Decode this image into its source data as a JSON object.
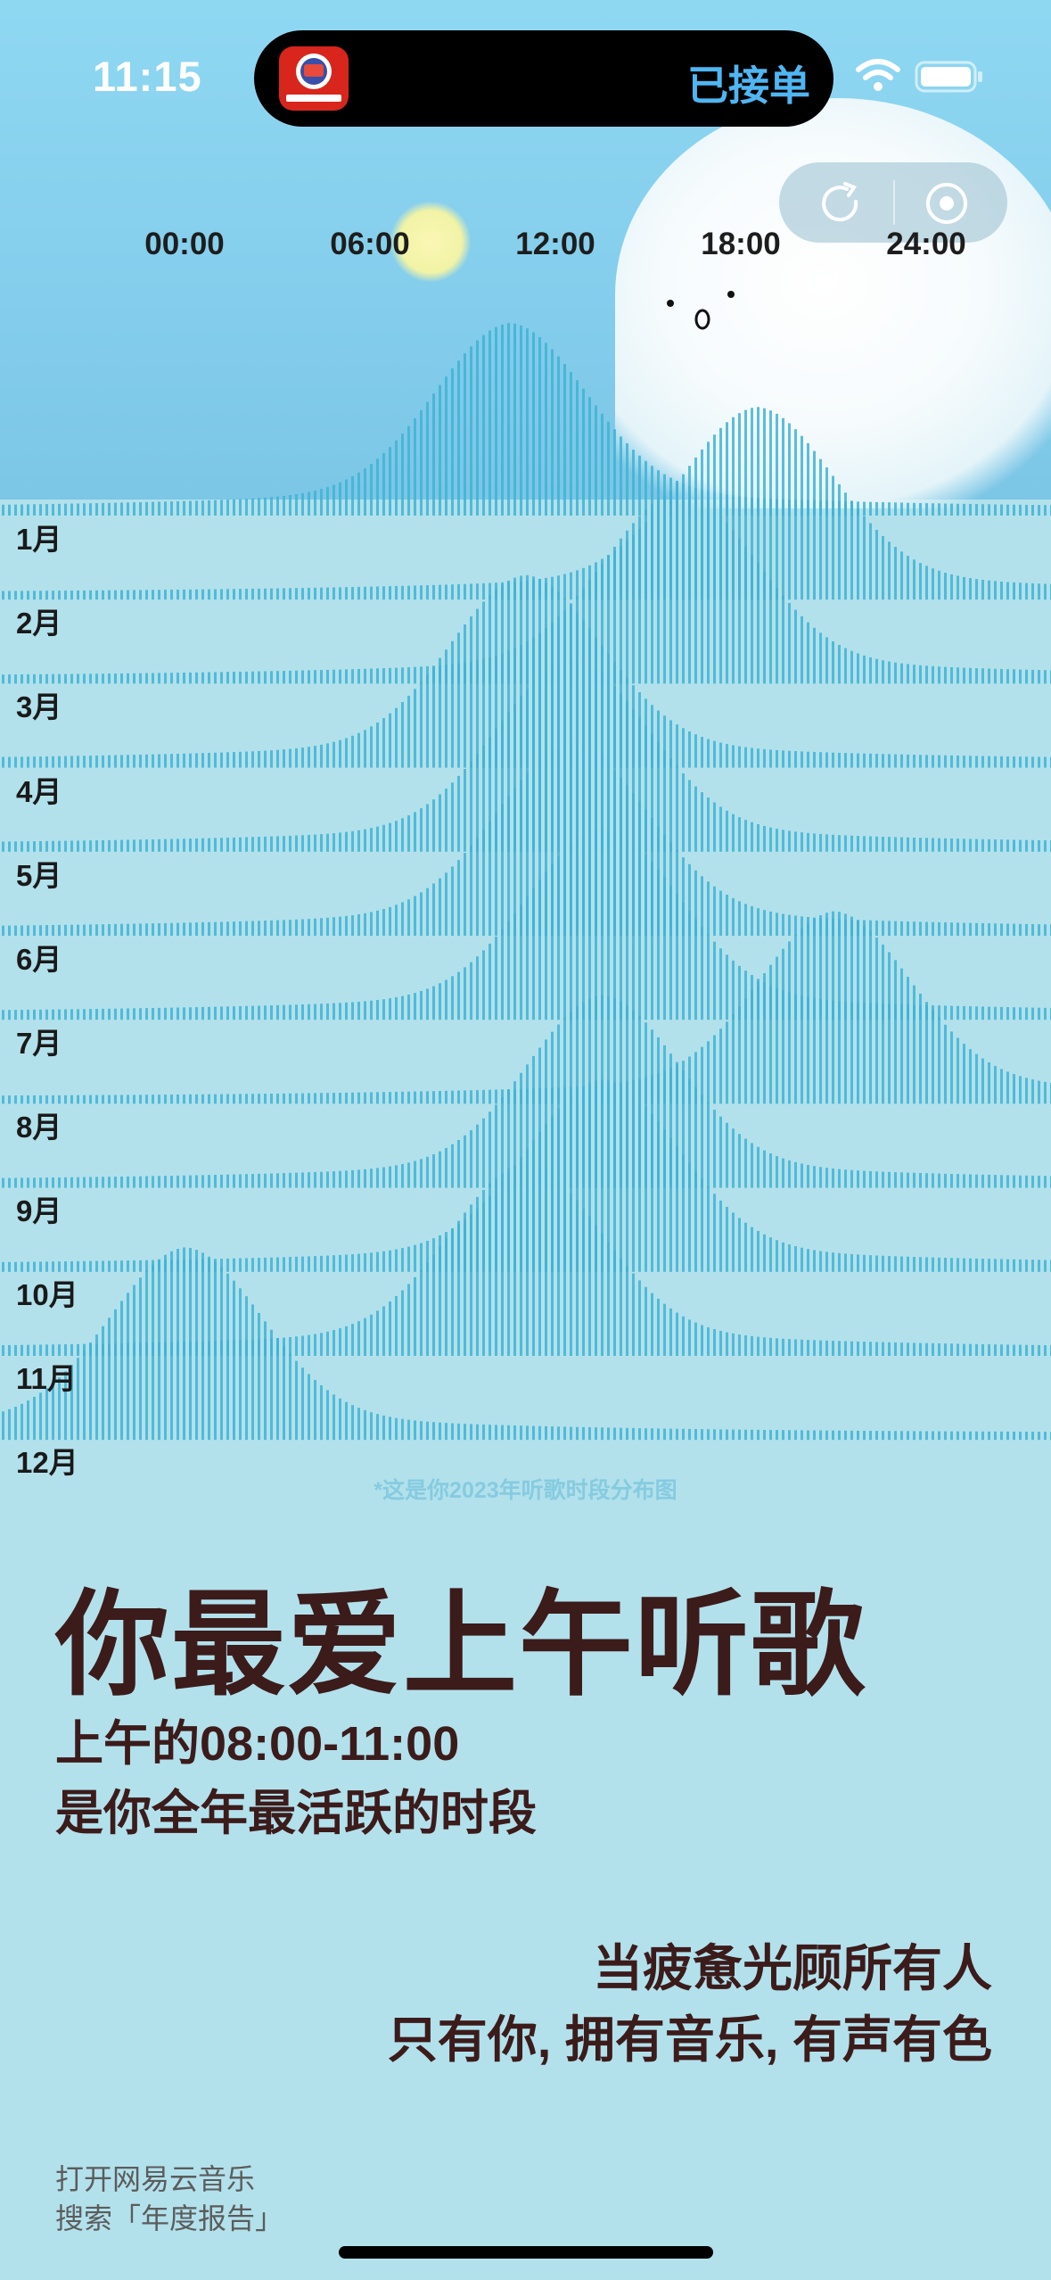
{
  "status_bar": {
    "time": "11:15",
    "island_text": "已接单"
  },
  "app_icon": {
    "name": "app-icon"
  },
  "colors": {
    "accent": "#4fb6f2",
    "wave": "#3fb3d4",
    "text_dark": "#3c1b1b",
    "background": "#b2e1ec"
  },
  "chart_data": {
    "type": "area",
    "title": "",
    "x_ticks": [
      "00:00",
      "06:00",
      "12:00",
      "18:00",
      "24:00"
    ],
    "series": [
      {
        "name": "1月",
        "peak_hour": 10.5
      },
      {
        "name": "2月",
        "peak_hour": 18.5
      },
      {
        "name": "3月",
        "peak_hour": 16.0
      },
      {
        "name": "4月",
        "peak_hour": 11.0
      },
      {
        "name": "5月",
        "peak_hour": 12.5
      },
      {
        "name": "6月",
        "peak_hour": 12.5
      },
      {
        "name": "7月",
        "peak_hour": 13.5
      },
      {
        "name": "8月",
        "peak_hour": 21.0
      },
      {
        "name": "9月",
        "peak_hour": 13.5
      },
      {
        "name": "10月",
        "peak_hour": 13.5
      },
      {
        "name": "11月",
        "peak_hour": 11.0
      },
      {
        "name": "12月",
        "peak_hour": 0
      }
    ],
    "caption": "*这是你2023年听歌时段分布图"
  },
  "content": {
    "headline": "你最爱上午听歌",
    "sub_line1": "上午的08:00-11:00",
    "sub_line2": "是你全年最活跃的时段",
    "quote_line1": "当疲惫光顾所有人",
    "quote_line2": "只有你, 拥有音乐, 有声有色",
    "footer_line1": "打开网易云音乐",
    "footer_line2": "搜索「年度报告」"
  },
  "icons": [
    "wifi-icon",
    "battery-icon",
    "rotate-icon",
    "record-icon",
    "app-icon"
  ]
}
